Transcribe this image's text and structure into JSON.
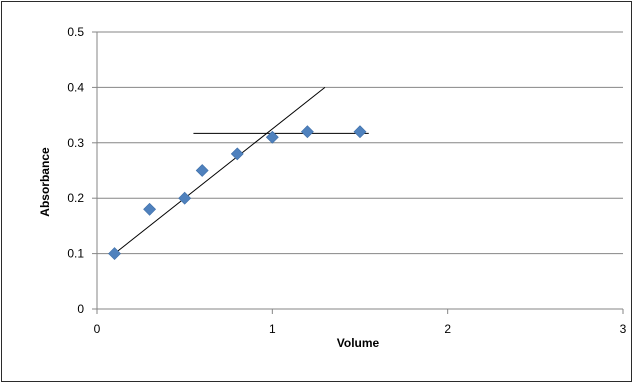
{
  "chart_data": {
    "type": "scatter",
    "title": "",
    "xlabel": "Volume",
    "ylabel": "Absorbance",
    "xlim": [
      0,
      3
    ],
    "ylim": [
      0,
      0.5
    ],
    "x_ticks": [
      "0",
      "1",
      "2",
      "3"
    ],
    "y_ticks": [
      "0",
      "0.1",
      "0.2",
      "0.3",
      "0.4",
      "0.5"
    ],
    "grid": "horizontal",
    "legend": "none",
    "colors": {
      "marker": "#4f81bd",
      "gridline": "#868686",
      "line": "#000000"
    },
    "series": [
      {
        "marker": "diamond",
        "x": [
          0.1,
          0.3,
          0.5,
          0.6,
          0.8,
          1.0,
          1.2,
          1.5
        ],
        "y": [
          0.1,
          0.18,
          0.2,
          0.25,
          0.28,
          0.31,
          0.32,
          0.32
        ]
      }
    ],
    "annotation_lines": [
      {
        "kind": "rising-trend",
        "x": [
          0.1,
          1.3
        ],
        "y": [
          0.1,
          0.4
        ]
      },
      {
        "kind": "plateau",
        "x": [
          0.55,
          1.55
        ],
        "y": [
          0.317,
          0.317
        ]
      }
    ]
  }
}
